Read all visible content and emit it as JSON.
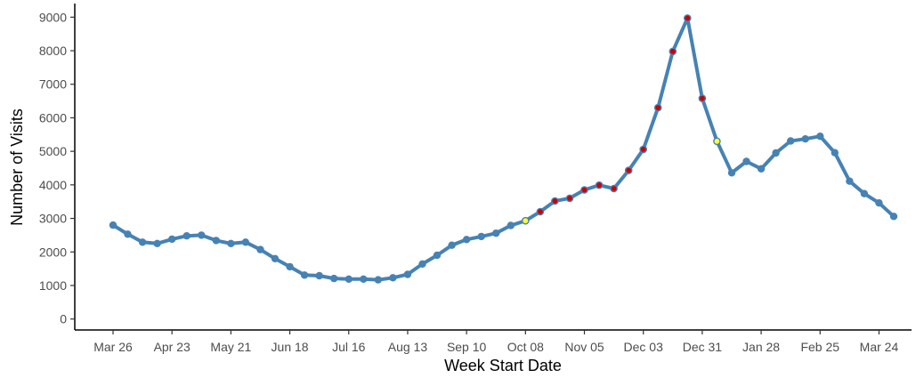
{
  "chart_data": {
    "type": "line",
    "xlabel": "Week Start Date",
    "ylabel": "Number of Visits",
    "ylim": [
      -300,
      9300
    ],
    "yticks": [
      0,
      1000,
      2000,
      3000,
      4000,
      5000,
      6000,
      7000,
      8000,
      9000
    ],
    "xticks": [
      "Mar 26",
      "Apr 23",
      "May 21",
      "Jun 18",
      "Jul 16",
      "Aug 13",
      "Sep 10",
      "Oct 08",
      "Nov 05",
      "Dec 03",
      "Dec 31",
      "Jan 28",
      "Feb 25",
      "Mar 24"
    ],
    "grid": false,
    "colors": {
      "line": "#4682b4",
      "normal": "#4682b4",
      "red": "#cc0000",
      "yellow": "#ffff33"
    },
    "points": [
      {
        "x": "Mar 26",
        "y": 2800,
        "flag": "normal"
      },
      {
        "x": "Apr 02",
        "y": 2530,
        "flag": "normal"
      },
      {
        "x": "Apr 09",
        "y": 2290,
        "flag": "normal"
      },
      {
        "x": "Apr 16",
        "y": 2250,
        "flag": "normal"
      },
      {
        "x": "Apr 23",
        "y": 2380,
        "flag": "normal"
      },
      {
        "x": "Apr 30",
        "y": 2480,
        "flag": "normal"
      },
      {
        "x": "May 07",
        "y": 2500,
        "flag": "normal"
      },
      {
        "x": "May 14",
        "y": 2340,
        "flag": "normal"
      },
      {
        "x": "May 21",
        "y": 2250,
        "flag": "normal"
      },
      {
        "x": "May 28",
        "y": 2290,
        "flag": "normal"
      },
      {
        "x": "Jun 04",
        "y": 2070,
        "flag": "normal"
      },
      {
        "x": "Jun 11",
        "y": 1800,
        "flag": "normal"
      },
      {
        "x": "Jun 18",
        "y": 1560,
        "flag": "normal"
      },
      {
        "x": "Jun 25",
        "y": 1310,
        "flag": "normal"
      },
      {
        "x": "Jul 02",
        "y": 1290,
        "flag": "normal"
      },
      {
        "x": "Jul 09",
        "y": 1210,
        "flag": "normal"
      },
      {
        "x": "Jul 16",
        "y": 1190,
        "flag": "normal"
      },
      {
        "x": "Jul 23",
        "y": 1190,
        "flag": "normal"
      },
      {
        "x": "Jul 30",
        "y": 1170,
        "flag": "normal"
      },
      {
        "x": "Aug 06",
        "y": 1230,
        "flag": "normal"
      },
      {
        "x": "Aug 13",
        "y": 1330,
        "flag": "normal"
      },
      {
        "x": "Aug 20",
        "y": 1640,
        "flag": "normal"
      },
      {
        "x": "Aug 27",
        "y": 1900,
        "flag": "normal"
      },
      {
        "x": "Sep 03",
        "y": 2200,
        "flag": "normal"
      },
      {
        "x": "Sep 10",
        "y": 2370,
        "flag": "normal"
      },
      {
        "x": "Sep 17",
        "y": 2460,
        "flag": "normal"
      },
      {
        "x": "Sep 24",
        "y": 2560,
        "flag": "normal"
      },
      {
        "x": "Oct 01",
        "y": 2790,
        "flag": "normal"
      },
      {
        "x": "Oct 08",
        "y": 2930,
        "flag": "yellow"
      },
      {
        "x": "Oct 15",
        "y": 3200,
        "flag": "red"
      },
      {
        "x": "Oct 22",
        "y": 3520,
        "flag": "red"
      },
      {
        "x": "Oct 29",
        "y": 3600,
        "flag": "red"
      },
      {
        "x": "Nov 05",
        "y": 3850,
        "flag": "red"
      },
      {
        "x": "Nov 12",
        "y": 3990,
        "flag": "red"
      },
      {
        "x": "Nov 19",
        "y": 3890,
        "flag": "red"
      },
      {
        "x": "Nov 26",
        "y": 4430,
        "flag": "red"
      },
      {
        "x": "Dec 03",
        "y": 5060,
        "flag": "red"
      },
      {
        "x": "Dec 10",
        "y": 6300,
        "flag": "red"
      },
      {
        "x": "Dec 17",
        "y": 7980,
        "flag": "red"
      },
      {
        "x": "Dec 24",
        "y": 8970,
        "flag": "red"
      },
      {
        "x": "Dec 31",
        "y": 6580,
        "flag": "red"
      },
      {
        "x": "Jan 07",
        "y": 5300,
        "flag": "yellow"
      },
      {
        "x": "Jan 14",
        "y": 4360,
        "flag": "normal"
      },
      {
        "x": "Jan 21",
        "y": 4700,
        "flag": "normal"
      },
      {
        "x": "Jan 28",
        "y": 4480,
        "flag": "normal"
      },
      {
        "x": "Feb 04",
        "y": 4950,
        "flag": "normal"
      },
      {
        "x": "Feb 11",
        "y": 5310,
        "flag": "normal"
      },
      {
        "x": "Feb 18",
        "y": 5370,
        "flag": "normal"
      },
      {
        "x": "Feb 25",
        "y": 5450,
        "flag": "normal"
      },
      {
        "x": "Mar 04",
        "y": 4960,
        "flag": "normal"
      },
      {
        "x": "Mar 11",
        "y": 4110,
        "flag": "normal"
      },
      {
        "x": "Mar 18",
        "y": 3740,
        "flag": "normal"
      },
      {
        "x": "Mar 24",
        "y": 3460,
        "flag": "normal"
      },
      {
        "x": "Mar 31",
        "y": 3060,
        "flag": "normal"
      }
    ]
  }
}
